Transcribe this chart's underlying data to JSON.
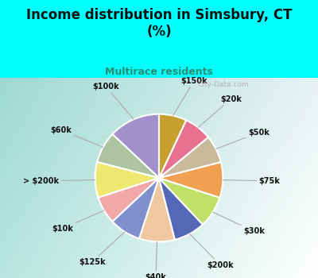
{
  "title": "Income distribution in Simsbury, CT\n(%)",
  "subtitle": "Multirace residents",
  "title_color": "#111111",
  "subtitle_color": "#2e8b6e",
  "background_cyan": "#00ffff",
  "background_chart_color": "#d6f0e8",
  "labels": [
    "$100k",
    "$60k",
    "> $200k",
    "$10k",
    "$125k",
    "$40k",
    "$200k",
    "$30k",
    "$75k",
    "$50k",
    "$20k",
    "$150k"
  ],
  "values": [
    13,
    8,
    9,
    7,
    8,
    9,
    8,
    8,
    9,
    7,
    7,
    7
  ],
  "colors": [
    "#a090cc",
    "#aec4a0",
    "#eee870",
    "#f0a8a8",
    "#8090cc",
    "#f0c8a0",
    "#5568b8",
    "#c0e068",
    "#f0a050",
    "#c8ba9a",
    "#e87090",
    "#c8a030"
  ],
  "figsize": [
    4.0,
    3.5
  ],
  "dpi": 100,
  "startangle": 90,
  "label_fontsize": 7,
  "title_fontsize": 12,
  "subtitle_fontsize": 9,
  "watermark": "City-Data.com"
}
